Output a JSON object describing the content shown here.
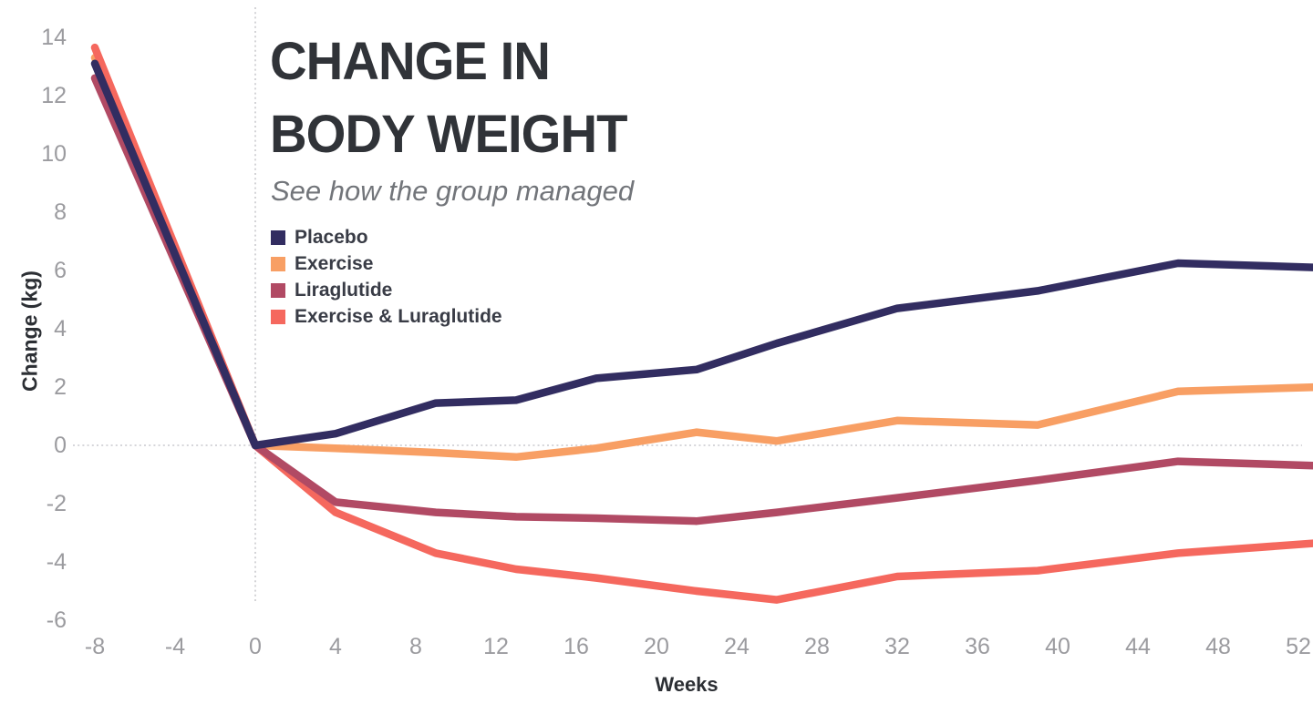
{
  "title": {
    "line1": "CHANGE IN",
    "line2": "BODY WEIGHT"
  },
  "subtitle": "See how the group managed",
  "chart_data": {
    "type": "line",
    "x": [
      -8,
      0,
      4,
      9,
      13,
      17,
      22,
      26,
      32,
      39,
      46,
      53
    ],
    "series": [
      {
        "name": "Placebo",
        "color": "#322D61",
        "values": [
          13.1,
          0,
          0.4,
          1.45,
          1.55,
          2.3,
          2.6,
          3.5,
          4.7,
          5.3,
          6.25,
          6.1
        ]
      },
      {
        "name": "Exercise",
        "color": "#F89F64",
        "values": [
          13.3,
          0,
          -0.1,
          -0.25,
          -0.4,
          -0.1,
          0.45,
          0.15,
          0.85,
          0.7,
          1.85,
          2.0
        ]
      },
      {
        "name": "Liraglutide",
        "color": "#B14A64",
        "values": [
          12.6,
          0,
          -1.95,
          -2.3,
          -2.45,
          -2.5,
          -2.6,
          -2.3,
          -1.8,
          -1.2,
          -0.55,
          -0.7
        ]
      },
      {
        "name": "Exercise & Luraglutide",
        "color": "#F5685E",
        "values": [
          13.65,
          0,
          -2.3,
          -3.7,
          -4.25,
          -4.55,
          -5.0,
          -5.3,
          -4.5,
          -4.3,
          -3.7,
          -3.35
        ]
      }
    ],
    "xlabel": "Weeks",
    "ylabel": "Change (kg)",
    "x_ticks": [
      -8,
      -4,
      0,
      4,
      8,
      12,
      16,
      20,
      24,
      28,
      32,
      36,
      40,
      44,
      48,
      52
    ],
    "y_ticks": [
      14,
      12,
      10,
      8,
      6,
      4,
      2,
      0,
      -2,
      -4,
      -6
    ],
    "xlim": [
      -10.3,
      53.3
    ],
    "ylim": [
      -7.3,
      15.0
    ],
    "grid": "dotted zero lines only (x=0 vertical, y=0 horizontal)",
    "legend_position": "upper-left-inside",
    "zero_line_color": "#c9c9cd"
  }
}
